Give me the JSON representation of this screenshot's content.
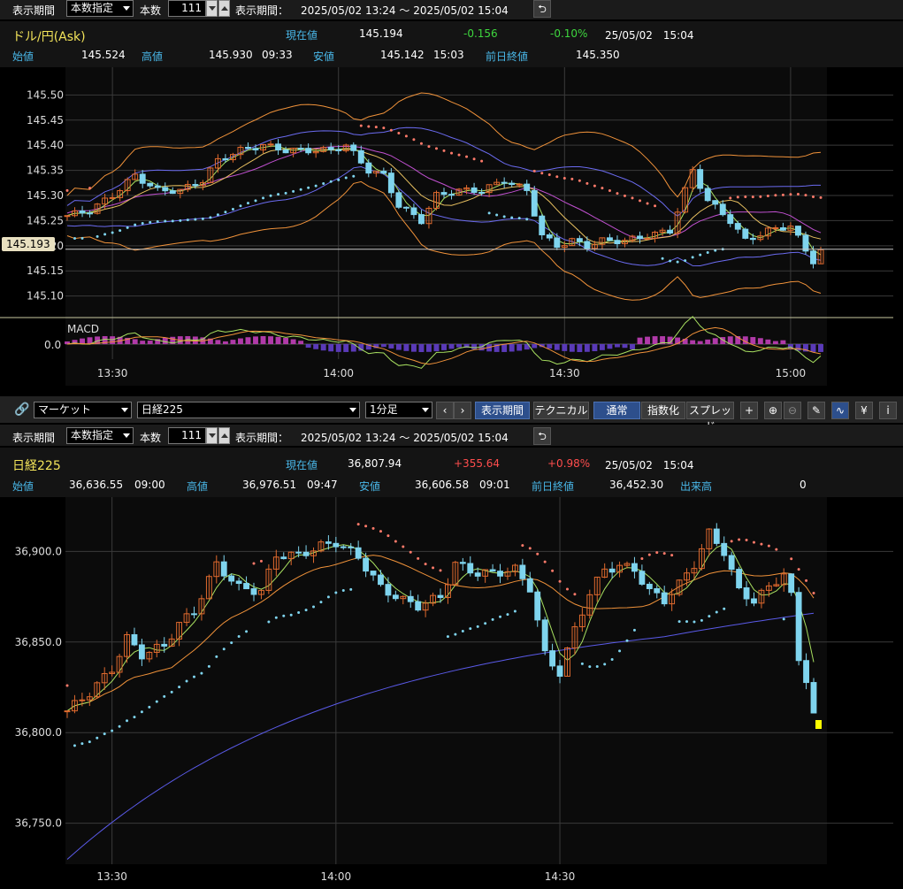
{
  "top": {
    "controls": {
      "period_label": "表示期間",
      "period_mode": "本数指定",
      "count_label": "本数",
      "count_value": "111",
      "range_label": "表示期間：",
      "range_value": "2025/05/02 13:24 ～ 2025/05/02 15:04"
    },
    "quote": {
      "name": "ドル/円(Ask)",
      "current_label": "現在値",
      "current": "145.194",
      "change": "-0.156",
      "change_pct": "-0.10%",
      "datetime": "25/05/02　15:04",
      "open_label": "始値",
      "open": "145.524",
      "high_label": "高値",
      "high": "145.930",
      "high_time": "09:33",
      "low_label": "安値",
      "low": "145.142",
      "low_time": "15:03",
      "prev_label": "前日終値",
      "prev": "145.350"
    },
    "price_marker": "145.193",
    "macd_label": "MACD",
    "macd_zero_label": "0.0"
  },
  "bottom": {
    "toolbar": {
      "market": "マーケット",
      "symbol": "日経225",
      "interval": "1分足",
      "prev_icon": "chevron-left-icon",
      "next_icon": "chevron-right-icon",
      "tabs": [
        "表示期間",
        "テクニカル"
      ],
      "modes": [
        "通常",
        "指数化",
        "スプレッド"
      ],
      "tool_icons": [
        "plus-icon",
        "zoom-in-icon",
        "zoom-out-icon",
        "pencil-icon",
        "chart-icon",
        "yen-icon",
        "info-icon"
      ]
    },
    "controls": {
      "period_label": "表示期間",
      "period_mode": "本数指定",
      "count_label": "本数",
      "count_value": "111",
      "range_label": "表示期間：",
      "range_value": "2025/05/02 13:24 ～ 2025/05/02 15:04"
    },
    "quote": {
      "name": "日経225",
      "current_label": "現在値",
      "current": "36,807.94",
      "change": "+355.64",
      "change_pct": "+0.98%",
      "datetime": "25/05/02　15:04",
      "open_label": "始値",
      "open": "36,636.55",
      "open_time": "09:00",
      "high_label": "高値",
      "high": "36,976.51",
      "high_time": "09:47",
      "low_label": "安値",
      "low": "36,606.58",
      "low_time": "09:01",
      "prev_label": "前日終値",
      "prev": "36,452.30",
      "volume_label": "出来高",
      "volume": "0"
    }
  },
  "chart_data": [
    {
      "type": "candlestick",
      "title": "ドル/円(Ask)",
      "y_ticks": [
        "145.50",
        "145.45",
        "145.40",
        "145.35",
        "145.30",
        "145.25",
        "145.20",
        "145.15",
        "145.10"
      ],
      "ylim": [
        145.08,
        145.52
      ],
      "x_ticks": [
        "13:30",
        "14:00",
        "14:30",
        "15:00"
      ],
      "x_tick_minutes": [
        6,
        36,
        66,
        96
      ],
      "x_range_minutes": [
        0,
        100
      ],
      "close_path": [
        [
          0,
          145.26
        ],
        [
          3,
          145.27
        ],
        [
          6,
          145.3
        ],
        [
          9,
          145.34
        ],
        [
          12,
          145.31
        ],
        [
          15,
          145.31
        ],
        [
          18,
          145.33
        ],
        [
          20,
          145.37
        ],
        [
          23,
          145.39
        ],
        [
          26,
          145.4
        ],
        [
          29,
          145.39
        ],
        [
          32,
          145.39
        ],
        [
          35,
          145.39
        ],
        [
          37,
          145.4
        ],
        [
          40,
          145.35
        ],
        [
          42,
          145.34
        ],
        [
          44,
          145.28
        ],
        [
          47,
          145.25
        ],
        [
          49,
          145.3
        ],
        [
          52,
          145.31
        ],
        [
          55,
          145.31
        ],
        [
          58,
          145.33
        ],
        [
          61,
          145.31
        ],
        [
          63,
          145.22
        ],
        [
          65,
          145.2
        ],
        [
          67,
          145.21
        ],
        [
          69,
          145.2
        ],
        [
          71,
          145.21
        ],
        [
          74,
          145.21
        ],
        [
          77,
          145.22
        ],
        [
          80,
          145.23
        ],
        [
          83,
          145.35
        ],
        [
          85,
          145.29
        ],
        [
          88,
          145.25
        ],
        [
          90,
          145.21
        ],
        [
          93,
          145.23
        ],
        [
          96,
          145.24
        ],
        [
          98,
          145.19
        ],
        [
          99,
          145.17
        ],
        [
          100,
          145.19
        ]
      ],
      "last_price": 145.193,
      "indicator": {
        "name": "MACD",
        "zero_label": "0.0",
        "histogram_sign": [
          1,
          1,
          1,
          1,
          1,
          1,
          1,
          1,
          1,
          1,
          1,
          -1,
          -1,
          -1,
          -1,
          -1,
          -1,
          -1,
          -1,
          -1,
          -1,
          -1,
          -1,
          -1,
          -1,
          -1,
          1,
          1,
          1,
          1,
          1,
          1,
          1,
          -1,
          -1
        ]
      },
      "colors": {
        "up": "#e06a2e",
        "down": "#7fd4ee",
        "parabolic_sar": "#ff7a6a",
        "bollinger_outer": "#f0923a",
        "bollinger_inner": "#6b6bf0",
        "ma_short": "#a8e060",
        "ma_mid": "#e8c060",
        "ma_long": "#c050d0"
      }
    },
    {
      "type": "candlestick",
      "title": "日経225",
      "y_ticks": [
        "36,900.0",
        "36,850.0",
        "36,800.0",
        "36,750.0"
      ],
      "ylim": [
        36720,
        36930
      ],
      "x_ticks": [
        "13:30",
        "14:00",
        "14:30"
      ],
      "x_tick_minutes": [
        6,
        36,
        66
      ],
      "x_range_minutes": [
        0,
        100
      ],
      "close_path": [
        [
          0,
          36812
        ],
        [
          3,
          36822
        ],
        [
          6,
          36835
        ],
        [
          8,
          36852
        ],
        [
          10,
          36843
        ],
        [
          13,
          36848
        ],
        [
          15,
          36860
        ],
        [
          17,
          36867
        ],
        [
          20,
          36893
        ],
        [
          23,
          36880
        ],
        [
          26,
          36878
        ],
        [
          28,
          36898
        ],
        [
          31,
          36898
        ],
        [
          34,
          36903
        ],
        [
          36,
          36905
        ],
        [
          39,
          36897
        ],
        [
          42,
          36880
        ],
        [
          45,
          36873
        ],
        [
          47,
          36870
        ],
        [
          50,
          36875
        ],
        [
          52,
          36893
        ],
        [
          55,
          36888
        ],
        [
          57,
          36888
        ],
        [
          60,
          36890
        ],
        [
          62,
          36880
        ],
        [
          64,
          36843
        ],
        [
          66,
          36833
        ],
        [
          68,
          36857
        ],
        [
          70,
          36877
        ],
        [
          72,
          36890
        ],
        [
          74,
          36892
        ],
        [
          76,
          36890
        ],
        [
          78,
          36878
        ],
        [
          80,
          36873
        ],
        [
          82,
          36882
        ],
        [
          84,
          36893
        ],
        [
          86,
          36910
        ],
        [
          88,
          36900
        ],
        [
          90,
          36878
        ],
        [
          92,
          36873
        ],
        [
          94,
          36880
        ],
        [
          96,
          36888
        ],
        [
          97,
          36875
        ],
        [
          98,
          36840
        ],
        [
          99,
          36830
        ],
        [
          100,
          36810
        ]
      ],
      "colors": {
        "up": "#e06a2e",
        "down": "#7fd4ee",
        "parabolic_sar_high": "#ff7a6a",
        "parabolic_sar_low": "#7fd4ee",
        "ma_short": "#a8e060",
        "ma_mid": "#f0923a",
        "ma_long": "#5a5ae8",
        "last_marker": "#ffff00"
      }
    }
  ]
}
